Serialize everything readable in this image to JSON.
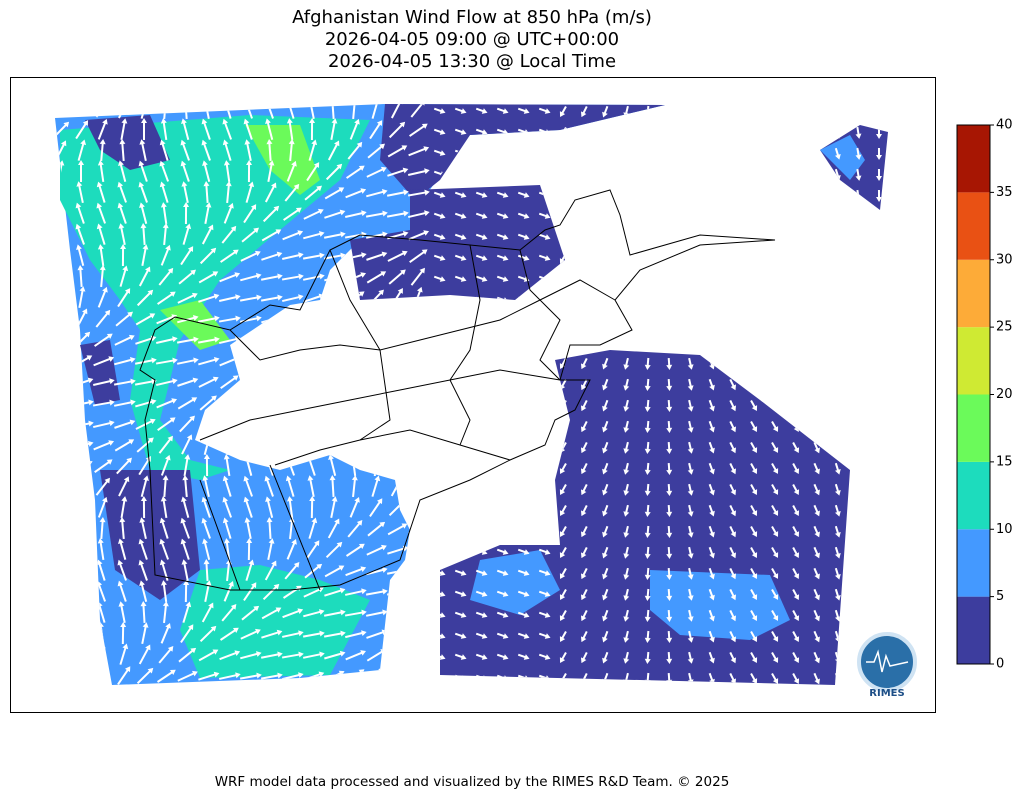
{
  "header": {
    "title_lines": [
      "Afghanistan Wind Flow at 850 hPa (m/s)",
      "2026-04-05 09:00 @ UTC+00:00",
      "2026-04-05 13:30 @ Local Time"
    ]
  },
  "colorbar": {
    "ticks": [
      0,
      5,
      10,
      15,
      20,
      25,
      30,
      35,
      40
    ],
    "colors": [
      "#3d3d9e",
      "#4499ff",
      "#1ddcbd",
      "#6bfa5a",
      "#cfea33",
      "#fdab38",
      "#e95114",
      "#a71603"
    ]
  },
  "logo": {
    "text": "RIMES"
  },
  "footer": "WRF model data processed and visualized by the RIMES R&D Team. © 2025"
}
